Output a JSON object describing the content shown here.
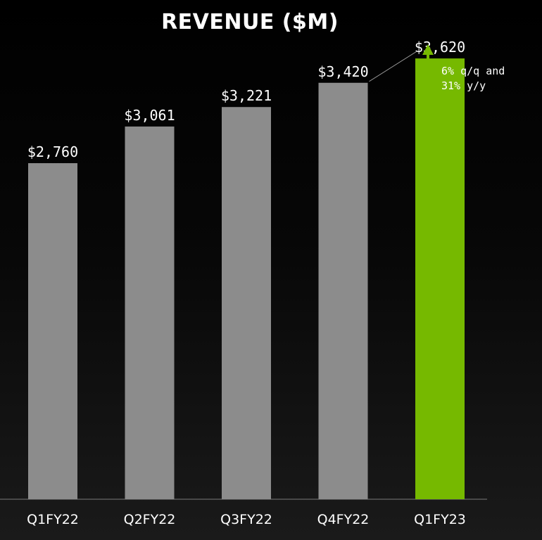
{
  "chart_data": {
    "type": "bar",
    "title": "REVENUE ($M)",
    "categories": [
      "Q1FY22",
      "Q2FY22",
      "Q3FY22",
      "Q4FY22",
      "Q1FY23"
    ],
    "values": [
      2760,
      3061,
      3221,
      3420,
      3620
    ],
    "value_labels": [
      "$2,760",
      "$3,061",
      "$3,221",
      "$3,420",
      "$3,620"
    ],
    "ylim": [
      0,
      4100
    ],
    "grid": false,
    "legend": "none",
    "colors": {
      "default_bar": "#8c8c8c",
      "highlight_bar": "#76b900",
      "arrow": "#76b900",
      "connector": "#a0a0a0",
      "baseline": "#5a5a5a"
    },
    "highlight_index": 4,
    "annotation": {
      "lines": [
        "6% q/q and",
        "31% y/y"
      ],
      "icon": "up-arrow-icon"
    }
  }
}
